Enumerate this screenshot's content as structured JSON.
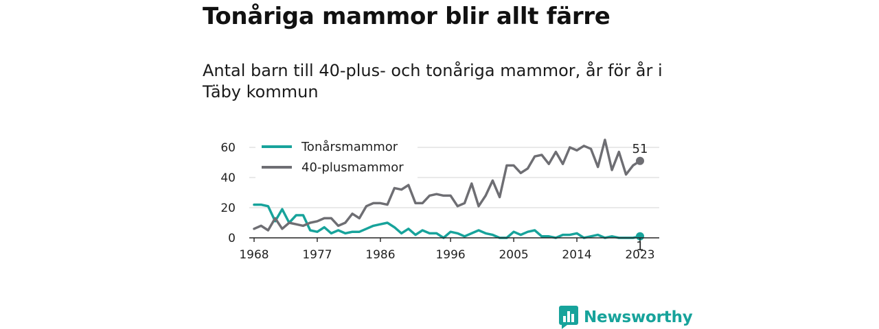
{
  "header": {
    "title": "Tonåriga mammor blir allt färre",
    "subtitle": "Antal barn till 40-plus- och tonåriga mammor, år för år i Täby kommun"
  },
  "brand": {
    "name": "Newsworthy",
    "color": "#17a39b",
    "icon": "newsworthy-logo-icon"
  },
  "chart_data": {
    "type": "line",
    "title": "",
    "xlabel": "",
    "ylabel": "",
    "xlim": [
      1968,
      2023
    ],
    "ylim": [
      0,
      60
    ],
    "x_ticks": [
      "1968",
      "1977",
      "1986",
      "1996",
      "2005",
      "2014",
      "2023"
    ],
    "y_ticks": [
      "0",
      "20",
      "40",
      "60"
    ],
    "grid": "horizontal",
    "legend": "top-left",
    "x": [
      1968,
      1969,
      1970,
      1971,
      1972,
      1973,
      1974,
      1975,
      1976,
      1977,
      1978,
      1979,
      1980,
      1981,
      1982,
      1983,
      1984,
      1985,
      1986,
      1987,
      1988,
      1989,
      1990,
      1991,
      1992,
      1993,
      1994,
      1995,
      1996,
      1997,
      1998,
      1999,
      2000,
      2001,
      2002,
      2003,
      2004,
      2005,
      2006,
      2007,
      2008,
      2009,
      2010,
      2011,
      2012,
      2013,
      2014,
      2015,
      2016,
      2017,
      2018,
      2019,
      2020,
      2021,
      2022,
      2023
    ],
    "series": [
      {
        "name": "Tonårsmammor",
        "color": "#17a39b",
        "values": [
          22,
          22,
          21,
          11,
          19,
          10,
          15,
          15,
          5,
          4,
          7,
          3,
          5,
          3,
          4,
          4,
          6,
          8,
          9,
          10,
          7,
          3,
          6,
          2,
          5,
          3,
          3,
          0,
          4,
          3,
          1,
          3,
          5,
          3,
          2,
          0,
          0,
          4,
          2,
          4,
          5,
          1,
          1,
          0,
          2,
          2,
          3,
          0,
          1,
          2,
          0,
          1,
          0,
          0,
          0,
          1
        ],
        "end_label": "1"
      },
      {
        "name": "40-plusmammor",
        "color": "#6e6e73",
        "values": [
          6,
          8,
          5,
          13,
          6,
          10,
          9,
          8,
          10,
          11,
          13,
          13,
          8,
          10,
          16,
          13,
          21,
          23,
          23,
          22,
          33,
          32,
          35,
          23,
          23,
          28,
          29,
          28,
          28,
          21,
          23,
          36,
          21,
          28,
          38,
          27,
          48,
          48,
          43,
          46,
          54,
          55,
          49,
          57,
          49,
          60,
          58,
          61,
          59,
          47,
          65,
          45,
          57,
          42,
          48,
          51
        ],
        "end_label": "51"
      }
    ]
  }
}
